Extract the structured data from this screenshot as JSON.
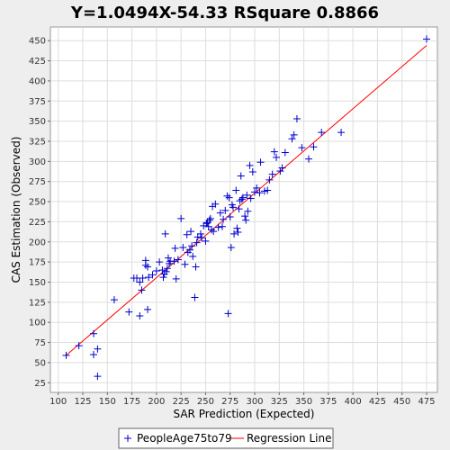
{
  "chart_data": {
    "type": "scatter",
    "title": "Y=1.0494X-54.33    RSquare 0.8866",
    "xlabel": "SAR Prediction (Expected)",
    "ylabel": "CAS Estimation (Observed)",
    "xlim": [
      92,
      486
    ],
    "ylim": [
      13,
      467
    ],
    "xticks": [
      100,
      125,
      150,
      175,
      200,
      225,
      250,
      275,
      300,
      325,
      350,
      375,
      400,
      425,
      450,
      475
    ],
    "yticks": [
      25,
      50,
      75,
      100,
      125,
      150,
      175,
      200,
      225,
      250,
      275,
      300,
      325,
      350,
      375,
      400,
      425,
      450
    ],
    "grid": true,
    "legend_position": "bottom",
    "series": [
      {
        "name": "PeopleAge75to79",
        "color": "#0000cc",
        "marker": "plus",
        "points": [
          [
            108,
            59
          ],
          [
            121,
            71
          ],
          [
            136,
            86
          ],
          [
            136,
            60
          ],
          [
            140,
            67
          ],
          [
            140,
            33
          ],
          [
            157,
            128
          ],
          [
            172,
            113
          ],
          [
            177,
            155
          ],
          [
            180,
            155
          ],
          [
            183,
            108
          ],
          [
            183,
            150
          ],
          [
            185,
            140
          ],
          [
            186,
            155
          ],
          [
            189,
            177
          ],
          [
            189,
            171
          ],
          [
            191,
            169
          ],
          [
            191,
            116
          ],
          [
            192,
            156
          ],
          [
            196,
            159
          ],
          [
            200,
            164
          ],
          [
            203,
            175
          ],
          [
            206,
            165
          ],
          [
            207,
            156
          ],
          [
            208,
            160
          ],
          [
            209,
            210
          ],
          [
            210,
            163
          ],
          [
            211,
            167
          ],
          [
            212,
            180
          ],
          [
            213,
            173
          ],
          [
            214,
            176
          ],
          [
            218,
            176
          ],
          [
            219,
            192
          ],
          [
            220,
            154
          ],
          [
            222,
            178
          ],
          [
            225,
            229
          ],
          [
            227,
            193
          ],
          [
            229,
            172
          ],
          [
            231,
            209
          ],
          [
            232,
            187
          ],
          [
            234,
            190
          ],
          [
            235,
            213
          ],
          [
            236,
            195
          ],
          [
            237,
            182
          ],
          [
            239,
            131
          ],
          [
            240,
            169
          ],
          [
            241,
            199
          ],
          [
            242,
            206
          ],
          [
            245,
            210
          ],
          [
            246,
            205
          ],
          [
            248,
            220
          ],
          [
            250,
            201
          ],
          [
            251,
            223
          ],
          [
            252,
            224
          ],
          [
            253,
            219
          ],
          [
            254,
            227
          ],
          [
            255,
            229
          ],
          [
            256,
            215
          ],
          [
            257,
            244
          ],
          [
            258,
            213
          ],
          [
            260,
            247
          ],
          [
            263,
            218
          ],
          [
            265,
            236
          ],
          [
            267,
            219
          ],
          [
            268,
            228
          ],
          [
            270,
            239
          ],
          [
            272,
            257
          ],
          [
            273,
            111
          ],
          [
            274,
            255
          ],
          [
            275,
            231
          ],
          [
            276,
            193
          ],
          [
            277,
            246
          ],
          [
            278,
            243
          ],
          [
            279,
            210
          ],
          [
            281,
            264
          ],
          [
            282,
            217
          ],
          [
            283,
            212
          ],
          [
            284,
            241
          ],
          [
            285,
            251
          ],
          [
            286,
            282
          ],
          [
            287,
            253
          ],
          [
            288,
            255
          ],
          [
            290,
            232
          ],
          [
            291,
            227
          ],
          [
            292,
            258
          ],
          [
            293,
            238
          ],
          [
            295,
            295
          ],
          [
            296,
            254
          ],
          [
            298,
            287
          ],
          [
            300,
            262
          ],
          [
            302,
            267
          ],
          [
            305,
            261
          ],
          [
            306,
            299
          ],
          [
            310,
            263
          ],
          [
            313,
            264
          ],
          [
            315,
            277
          ],
          [
            318,
            284
          ],
          [
            320,
            312
          ],
          [
            322,
            305
          ],
          [
            326,
            288
          ],
          [
            328,
            292
          ],
          [
            331,
            311
          ],
          [
            338,
            328
          ],
          [
            340,
            333
          ],
          [
            343,
            353
          ],
          [
            348,
            317
          ],
          [
            355,
            303
          ],
          [
            360,
            318
          ],
          [
            368,
            336
          ],
          [
            388,
            336
          ],
          [
            475,
            452
          ]
        ]
      }
    ],
    "regression": {
      "name": "Regression Line",
      "color": "#ff0000",
      "slope": 1.0494,
      "intercept": -54.33,
      "x_range": [
        108,
        475
      ]
    }
  }
}
